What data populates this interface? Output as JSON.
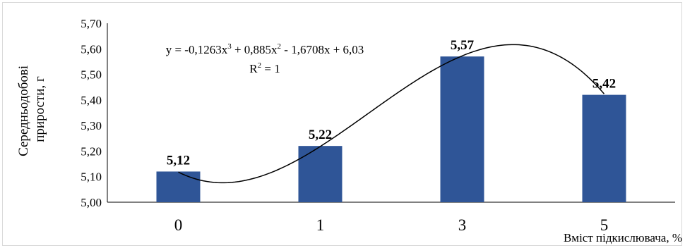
{
  "chart_data": {
    "type": "bar",
    "categories": [
      "0",
      "1",
      "3",
      "5"
    ],
    "values": [
      5.12,
      5.22,
      5.57,
      5.42
    ],
    "data_labels": [
      "5,12",
      "5,22",
      "5,57",
      "5,42"
    ],
    "title": "",
    "xlabel": "Вміст підкислювача, %",
    "ylabel_line1": "Середньодобові",
    "ylabel_line2": "прирости, г",
    "ylim": [
      5.0,
      5.7
    ],
    "ytick_values": [
      5.0,
      5.1,
      5.2,
      5.3,
      5.4,
      5.5,
      5.6,
      5.7
    ],
    "ytick_labels": [
      "5,00",
      "5,10",
      "5,20",
      "5,30",
      "5,40",
      "5,50",
      "5,60",
      "5,70"
    ],
    "grid": false,
    "legend": "none",
    "bar_color": "#2F5597",
    "trendline": {
      "type": "polynomial",
      "order": 3,
      "coefficients": [
        -0.1263,
        0.885,
        -1.6708,
        6.03
      ],
      "x_index_range": [
        1,
        4
      ],
      "color": "#000000",
      "equation": {
        "prefix": "y = -0,1263x",
        "sup1": "3",
        "mid1": " + 0,885x",
        "sup2": "2",
        "suffix": " - 1,6708x + 6,03"
      },
      "r2": {
        "prefix": "R",
        "sup": "2",
        "suffix": " = 1"
      }
    }
  }
}
